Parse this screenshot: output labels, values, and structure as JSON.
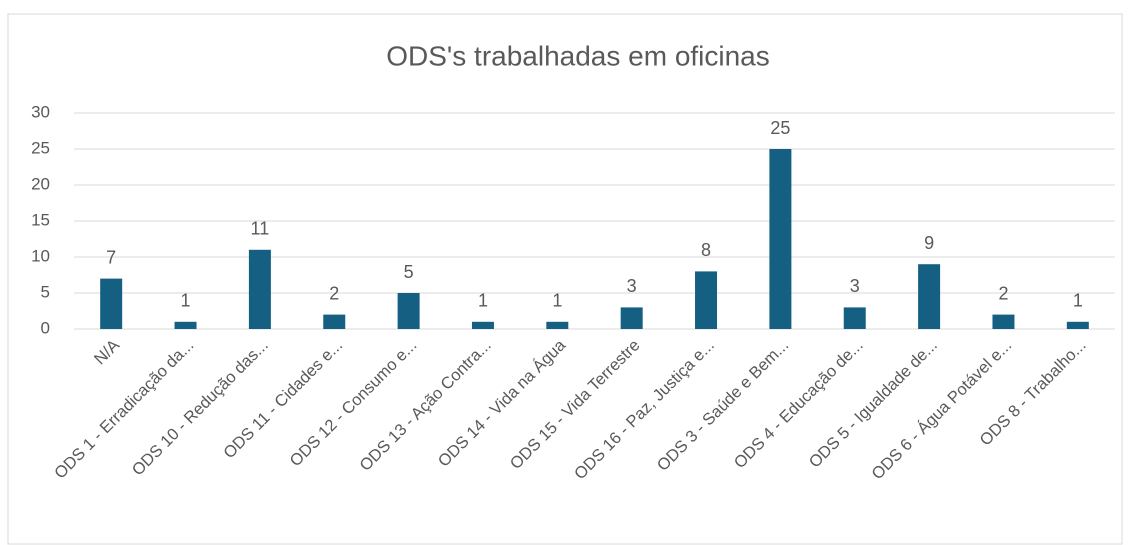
{
  "chart_data": {
    "type": "bar",
    "title": "ODS's trabalhadas em oficinas",
    "categories": [
      "N/A",
      "ODS 1 - Erradicação da...",
      "ODS 10 - Redução das...",
      "ODS 11 - Cidades e...",
      "ODS 12 - Consumo e...",
      "ODS 13 - Ação Contra...",
      "ODS 14 - Vida na Água",
      "ODS 15 - Vida Terrestre",
      "ODS 16 - Paz, Justiça e...",
      "ODS 3 - Saúde e Bem...",
      "ODS 4 - Educação de...",
      "ODS 5 - Igualdade de...",
      "ODS 6 - Água Potável e...",
      "ODS 8 - Trabalho..."
    ],
    "values": [
      7,
      1,
      11,
      2,
      5,
      1,
      1,
      3,
      8,
      25,
      3,
      9,
      2,
      1
    ],
    "color": "#156082",
    "ylim": [
      0,
      30
    ],
    "yticks": [
      0,
      5,
      10,
      15,
      20,
      25,
      30
    ],
    "grid": true
  }
}
